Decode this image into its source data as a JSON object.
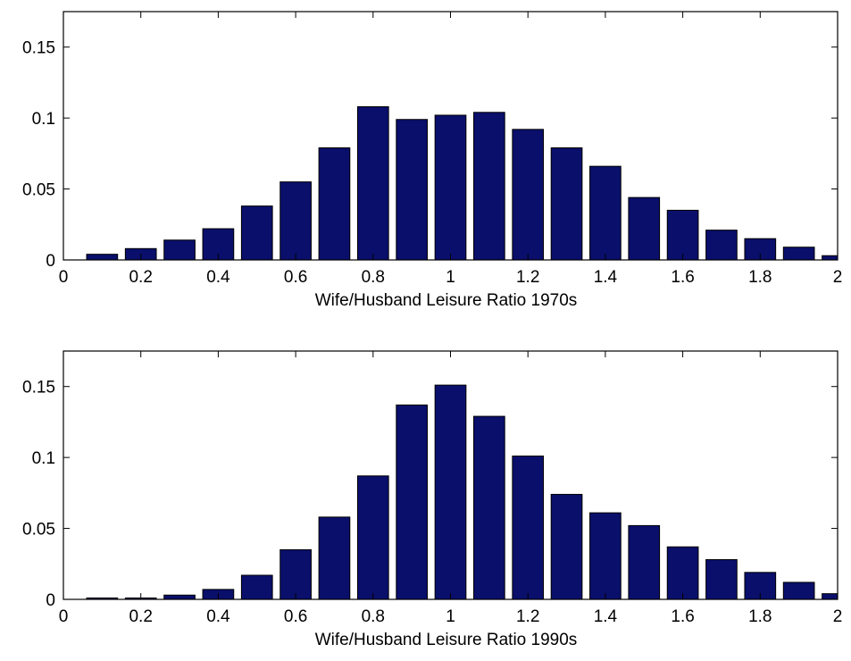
{
  "colors": {
    "bar_fill": "#0a0f6b",
    "bar_edge": "#000000",
    "axes": "#000000",
    "background": "#ffffff"
  },
  "chart_data": [
    {
      "type": "bar",
      "x": [
        0.1,
        0.2,
        0.3,
        0.4,
        0.5,
        0.6,
        0.7,
        0.8,
        0.9,
        1.0,
        1.1,
        1.2,
        1.3,
        1.4,
        1.5,
        1.6,
        1.7,
        1.8,
        1.9,
        2.0
      ],
      "values": [
        0.004,
        0.008,
        0.014,
        0.022,
        0.038,
        0.055,
        0.079,
        0.108,
        0.099,
        0.102,
        0.104,
        0.092,
        0.079,
        0.066,
        0.044,
        0.035,
        0.021,
        0.015,
        0.009,
        0.003
      ],
      "xlabel": "Wife/Husband Leisure Ratio 1970s",
      "ylabel": "",
      "xlim": [
        0,
        2
      ],
      "ylim": [
        0,
        0.175
      ],
      "xticks": [
        "0",
        "0.2",
        "0.4",
        "0.6",
        "0.8",
        "1",
        "1.2",
        "1.4",
        "1.6",
        "1.8",
        "2"
      ],
      "yticks": [
        "0",
        "0.05",
        "0.1",
        "0.15"
      ],
      "grid": false
    },
    {
      "type": "bar",
      "x": [
        0.1,
        0.2,
        0.3,
        0.4,
        0.5,
        0.6,
        0.7,
        0.8,
        0.9,
        1.0,
        1.1,
        1.2,
        1.3,
        1.4,
        1.5,
        1.6,
        1.7,
        1.8,
        1.9,
        2.0
      ],
      "values": [
        0.001,
        0.001,
        0.003,
        0.007,
        0.017,
        0.035,
        0.058,
        0.087,
        0.137,
        0.151,
        0.129,
        0.101,
        0.074,
        0.061,
        0.052,
        0.037,
        0.028,
        0.019,
        0.012,
        0.004
      ],
      "xlabel": "Wife/Husband Leisure Ratio 1990s",
      "ylabel": "",
      "xlim": [
        0,
        2
      ],
      "ylim": [
        0,
        0.175
      ],
      "xticks": [
        "0",
        "0.2",
        "0.4",
        "0.6",
        "0.8",
        "1",
        "1.2",
        "1.4",
        "1.6",
        "1.8",
        "2"
      ],
      "yticks": [
        "0",
        "0.05",
        "0.1",
        "0.15"
      ],
      "grid": false
    }
  ]
}
